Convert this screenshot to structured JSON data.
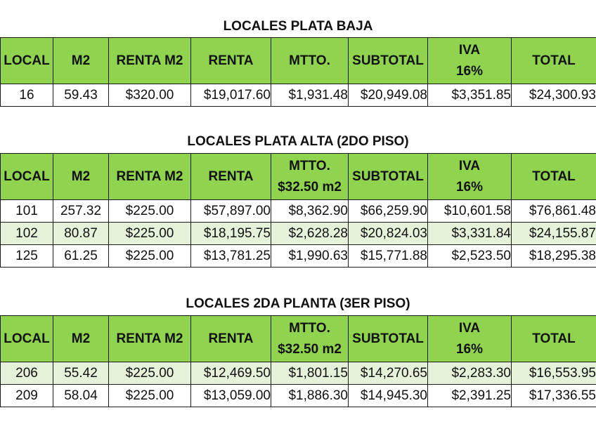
{
  "sections": [
    {
      "title": "LOCALES PLATA BAJA",
      "headers": [
        "LOCAL",
        "M2",
        "RENTA M2",
        "RENTA",
        [
          "MTTO.",
          ""
        ],
        "SUBTOTAL",
        [
          "IVA",
          "16%"
        ],
        "TOTAL"
      ],
      "rows": [
        [
          "16",
          "59.43",
          "$320.00",
          "$19,017.60",
          "$1,931.48",
          "$20,949.08",
          "$3,351.85",
          "$24,300.93"
        ]
      ]
    },
    {
      "title": "LOCALES PLATA ALTA (2DO PISO)",
      "headers": [
        "LOCAL",
        "M2",
        "RENTA M2",
        "RENTA",
        [
          "MTTO.",
          "$32.50 m2"
        ],
        "SUBTOTAL",
        [
          "IVA",
          "16%"
        ],
        "TOTAL"
      ],
      "rows": [
        [
          "101",
          "257.32",
          "$225.00",
          "$57,897.00",
          "$8,362.90",
          "$66,259.90",
          "$10,601.58",
          "$76,861.48"
        ],
        [
          "102",
          "80.87",
          "$225.00",
          "$18,195.75",
          "$2,628.28",
          "$20,824.03",
          "$3,331.84",
          "$24,155.87"
        ],
        [
          "125",
          "61.25",
          "$225.00",
          "$13,781.25",
          "$1,990.63",
          "$15,771.88",
          "$2,523.50",
          "$18,295.38"
        ]
      ]
    },
    {
      "title": "LOCALES 2DA PLANTA (3ER PISO)",
      "headers": [
        "LOCAL",
        "M2",
        "RENTA M2",
        "RENTA",
        [
          "MTTO.",
          "$32.50 m2"
        ],
        "SUBTOTAL",
        [
          "IVA",
          "16%"
        ],
        "TOTAL"
      ],
      "rows": [
        [
          "206",
          "55.42",
          "$225.00",
          "$12,469.50",
          "$1,801.15",
          "$14,270.65",
          "$2,283.30",
          "$16,553.95"
        ],
        [
          "209",
          "58.04",
          "$225.00",
          "$13,059.00",
          "$1,886.30",
          "$14,945.30",
          "$2,391.25",
          "$17,336.55"
        ]
      ]
    }
  ],
  "colors": {
    "header_green": "#8fd34f",
    "alt_row_green": "#e5f2d9",
    "border": "#1a1a1a"
  }
}
